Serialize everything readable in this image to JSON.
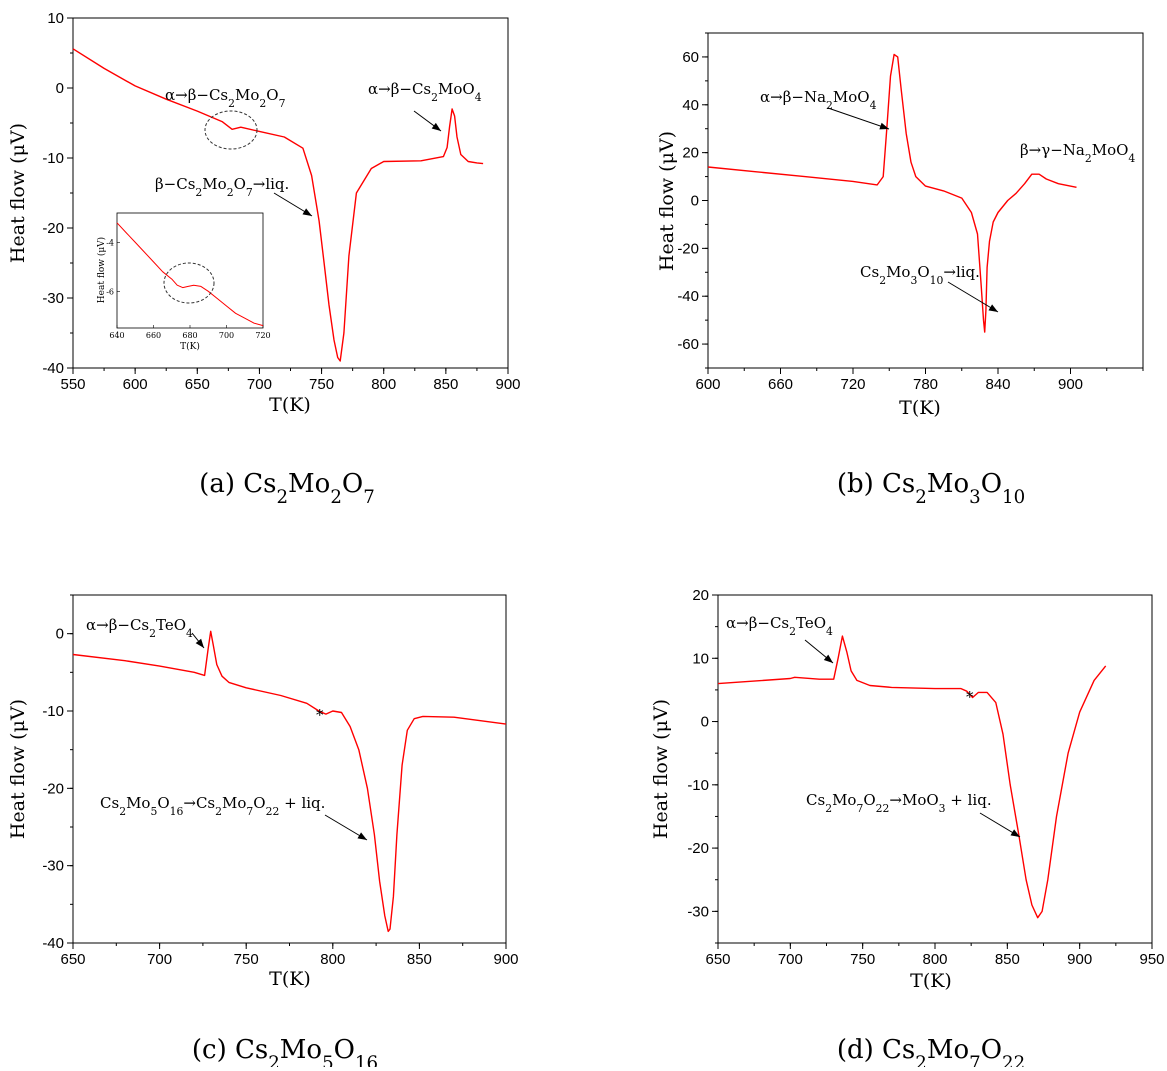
{
  "chart_data": [
    {
      "type": "line",
      "panel": "a",
      "caption": {
        "prefix": "(a) ",
        "formula": [
          [
            "Cs",
            ""
          ],
          [
            "Mo",
            "2"
          ],
          [
            "O",
            "2"
          ],
          [
            "",
            "7"
          ]
        ]
      },
      "xlabel": "T(K)",
      "ylabel": "Heat flow (μV)",
      "xlim": [
        550,
        900
      ],
      "ylim": [
        -40,
        10
      ],
      "xticks": [
        550,
        600,
        650,
        700,
        750,
        800,
        850,
        900
      ],
      "yticks": [
        -40,
        -30,
        -20,
        -10,
        0,
        10
      ],
      "color": "#ff0000",
      "series": [
        {
          "x": [
            550,
            575,
            600,
            625,
            650,
            670,
            678,
            685,
            700,
            720,
            735,
            742,
            748,
            752,
            756,
            760,
            763,
            765,
            768,
            772,
            778,
            790,
            800,
            830,
            848,
            851,
            853,
            855,
            857,
            859,
            862,
            868,
            875,
            880
          ],
          "y": [
            5.6,
            2.8,
            0.3,
            -1.6,
            -3.3,
            -4.8,
            -5.9,
            -5.6,
            -6.2,
            -7.0,
            -8.6,
            -12.5,
            -19,
            -25,
            -31,
            -36,
            -38.5,
            -39,
            -35,
            -24,
            -15,
            -11.5,
            -10.5,
            -10.4,
            -9.8,
            -8.5,
            -5.5,
            -3.0,
            -4.0,
            -7.0,
            -9.5,
            -10.5,
            -10.7,
            -10.8
          ]
        }
      ],
      "annotations": [
        {
          "segments": [
            [
              "α→β−Cs",
              ""
            ],
            [
              "",
              "2"
            ],
            [
              "Mo",
              ""
            ],
            [
              "",
              "2"
            ],
            [
              "O",
              ""
            ],
            [
              "",
              "7"
            ]
          ]
        },
        {
          "segments": [
            [
              "α→β−Cs",
              ""
            ],
            [
              "",
              "2"
            ],
            [
              "MoO",
              ""
            ],
            [
              "",
              "4"
            ]
          ]
        },
        {
          "segments": [
            [
              "β−Cs",
              ""
            ],
            [
              "",
              "2"
            ],
            [
              "Mo",
              ""
            ],
            [
              "",
              "2"
            ],
            [
              "O",
              ""
            ],
            [
              "",
              "7"
            ],
            [
              "→liq.",
              ""
            ]
          ]
        }
      ],
      "inset": {
        "xlabel": "T(K)",
        "ylabel": "Heat flow (μV)",
        "xlim": [
          640,
          720
        ],
        "ylim": [
          -7.5,
          -2.8
        ],
        "xticks": [
          640,
          660,
          680,
          700,
          720
        ],
        "yticks": [
          -6,
          -4
        ],
        "x": [
          640,
          645,
          650,
          655,
          660,
          665,
          670,
          673,
          676,
          679,
          682,
          686,
          690,
          695,
          700,
          705,
          710,
          715,
          720
        ],
        "y": [
          -3.2,
          -3.6,
          -4.0,
          -4.4,
          -4.8,
          -5.2,
          -5.5,
          -5.75,
          -5.85,
          -5.8,
          -5.75,
          -5.8,
          -6.0,
          -6.3,
          -6.6,
          -6.9,
          -7.1,
          -7.3,
          -7.4
        ]
      }
    },
    {
      "type": "line",
      "panel": "b",
      "caption": {
        "prefix": "(b) ",
        "formula": [
          [
            "Cs",
            ""
          ],
          [
            "Mo",
            "2"
          ],
          [
            "O",
            "3"
          ],
          [
            "",
            "10"
          ]
        ]
      },
      "xlabel": "T(K)",
      "ylabel": "Heat flow (μV)",
      "xlim": [
        600,
        960
      ],
      "ylim": [
        -70,
        70
      ],
      "xticks": [
        600,
        660,
        720,
        780,
        840,
        900
      ],
      "yticks": [
        -60,
        -40,
        -20,
        0,
        20,
        40,
        60
      ],
      "color": "#ff0000",
      "series": [
        {
          "x": [
            600,
            640,
            680,
            720,
            740,
            745,
            748,
            751,
            754,
            757,
            760,
            764,
            768,
            772,
            780,
            795,
            810,
            818,
            823,
            826,
            828,
            829,
            830,
            831,
            833,
            836,
            840,
            848,
            855,
            862,
            868,
            874,
            880,
            890,
            905
          ],
          "y": [
            14,
            12,
            10,
            8,
            6.5,
            10,
            30,
            52,
            61,
            60,
            46,
            28,
            16,
            10,
            6,
            4,
            1,
            -5,
            -14,
            -35,
            -50,
            -55,
            -46,
            -28,
            -17,
            -9,
            -5,
            0,
            3,
            7,
            11,
            11,
            9,
            7,
            5.5
          ]
        }
      ],
      "annotations": [
        {
          "segments": [
            [
              "α→β−Na",
              ""
            ],
            [
              "",
              "2"
            ],
            [
              "MoO",
              ""
            ],
            [
              "",
              "4"
            ]
          ]
        },
        {
          "segments": [
            [
              "β→γ−Na",
              ""
            ],
            [
              "",
              "2"
            ],
            [
              "MoO",
              ""
            ],
            [
              "",
              "4"
            ]
          ]
        },
        {
          "segments": [
            [
              "Cs",
              ""
            ],
            [
              "",
              "2"
            ],
            [
              "Mo",
              ""
            ],
            [
              "",
              "3"
            ],
            [
              "O",
              ""
            ],
            [
              "",
              "10"
            ],
            [
              "→liq.",
              ""
            ]
          ]
        }
      ]
    },
    {
      "type": "line",
      "panel": "c",
      "caption": {
        "prefix": "(c) ",
        "formula": [
          [
            "Cs",
            ""
          ],
          [
            "Mo",
            "2"
          ],
          [
            "O",
            "5"
          ],
          [
            "",
            "16"
          ]
        ]
      },
      "xlabel": "T(K)",
      "ylabel": "Heat flow (μV)",
      "xlim": [
        650,
        900
      ],
      "ylim": [
        -40,
        5
      ],
      "xticks": [
        650,
        700,
        750,
        800,
        850,
        900
      ],
      "yticks": [
        -40,
        -30,
        -20,
        -10,
        0
      ],
      "color": "#ff0000",
      "series": [
        {
          "x": [
            650,
            680,
            700,
            720,
            726,
            728,
            729.5,
            731,
            733,
            736,
            740,
            750,
            770,
            785,
            792,
            796,
            800,
            805,
            810,
            815,
            820,
            824,
            827,
            830,
            832,
            833,
            835,
            837,
            840,
            843,
            847,
            852,
            870,
            900
          ],
          "y": [
            -2.7,
            -3.5,
            -4.2,
            -5.0,
            -5.4,
            -2.0,
            0.3,
            -1.5,
            -4.0,
            -5.5,
            -6.3,
            -7.0,
            -8.0,
            -9.0,
            -10.0,
            -10.4,
            -10.0,
            -10.2,
            -12,
            -15,
            -20,
            -26,
            -32,
            -36.5,
            -38.5,
            -38.2,
            -34,
            -26,
            -17,
            -12.5,
            -11,
            -10.7,
            -10.8,
            -11.7
          ]
        }
      ],
      "annotations": [
        {
          "segments": [
            [
              "α→β−Cs",
              ""
            ],
            [
              "",
              "2"
            ],
            [
              "TeO",
              ""
            ],
            [
              "",
              "4"
            ]
          ]
        },
        {
          "segments": [
            [
              "*",
              ""
            ]
          ]
        },
        {
          "segments": [
            [
              "Cs",
              ""
            ],
            [
              "",
              "2"
            ],
            [
              "Mo",
              ""
            ],
            [
              "",
              "5"
            ],
            [
              "O",
              ""
            ],
            [
              "",
              "16"
            ],
            [
              "→Cs",
              ""
            ],
            [
              "",
              "2"
            ],
            [
              "Mo",
              ""
            ],
            [
              "",
              "7"
            ],
            [
              "O",
              ""
            ],
            [
              "",
              "22"
            ],
            [
              " + liq.",
              ""
            ]
          ]
        }
      ]
    },
    {
      "type": "line",
      "panel": "d",
      "caption": {
        "prefix": "(d) ",
        "formula": [
          [
            "Cs",
            ""
          ],
          [
            "Mo",
            "2"
          ],
          [
            "O",
            "7"
          ],
          [
            "",
            "22"
          ]
        ]
      },
      "xlabel": "T(K)",
      "ylabel": "Heat flow (μV)",
      "xlim": [
        650,
        950
      ],
      "ylim": [
        -35,
        20
      ],
      "xticks": [
        650,
        700,
        750,
        800,
        850,
        900,
        950
      ],
      "yticks": [
        -30,
        -20,
        -10,
        0,
        10,
        20
      ],
      "color": "#ff0000",
      "series": [
        {
          "x": [
            650,
            700,
            703,
            720,
            730,
            733,
            736,
            739,
            742,
            746,
            755,
            770,
            800,
            818,
            822,
            826,
            830,
            836,
            842,
            847,
            852,
            858,
            863,
            867,
            871,
            874,
            878,
            884,
            892,
            900,
            910,
            918
          ],
          "y": [
            6.0,
            6.8,
            7.0,
            6.7,
            6.7,
            10,
            13.5,
            11,
            8.0,
            6.5,
            5.7,
            5.4,
            5.2,
            5.2,
            4.8,
            3.8,
            4.6,
            4.6,
            3.0,
            -2,
            -10,
            -18,
            -25,
            -29,
            -31,
            -30,
            -25,
            -15,
            -5,
            1.5,
            6.5,
            8.8
          ]
        }
      ],
      "annotations": [
        {
          "segments": [
            [
              "α→β−Cs",
              ""
            ],
            [
              "",
              "2"
            ],
            [
              "TeO",
              ""
            ],
            [
              "",
              "4"
            ]
          ]
        },
        {
          "segments": [
            [
              "*",
              ""
            ]
          ]
        },
        {
          "segments": [
            [
              "Cs",
              ""
            ],
            [
              "",
              "2"
            ],
            [
              "Mo",
              ""
            ],
            [
              "",
              "7"
            ],
            [
              "O",
              ""
            ],
            [
              "",
              "22"
            ],
            [
              "→MoO",
              ""
            ],
            [
              "",
              "3"
            ],
            [
              " + liq.",
              ""
            ]
          ]
        }
      ]
    }
  ]
}
